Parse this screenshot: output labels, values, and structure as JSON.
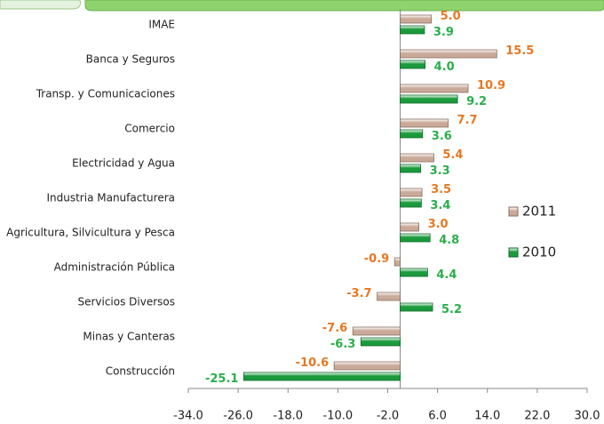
{
  "chart_data": {
    "type": "hbar",
    "categories": [
      "IMAE",
      "Banca y Seguros",
      "Transp. y Comunicaciones",
      "Comercio",
      "Electricidad y Agua",
      "Industria Manufacturera",
      "Agricultura, Silvicultura y Pesca",
      "Administración Pública",
      "Servicios Diversos",
      "Minas y Canteras",
      "Construcción"
    ],
    "series": [
      {
        "name": "2011",
        "color": "#c9a999",
        "label_color": "#e87722",
        "values": [
          5.0,
          15.5,
          10.9,
          7.7,
          5.4,
          3.5,
          3.0,
          -0.9,
          -3.7,
          -7.6,
          -10.6
        ],
        "value_labels": [
          "5.0",
          "15.5",
          "10.9",
          "7.7",
          "5.4",
          "3.5",
          "3.0",
          "-0.9",
          "-3.7",
          "-7.6",
          "-10.6"
        ]
      },
      {
        "name": "2010",
        "color": "#1a9a3c",
        "label_color": "#2aae4a",
        "values": [
          3.9,
          4.0,
          9.2,
          3.6,
          3.3,
          3.4,
          4.8,
          4.4,
          5.2,
          -6.3,
          -25.1
        ],
        "value_labels": [
          "3.9",
          "4.0",
          "9.2",
          "3.6",
          "3.3",
          "3.4",
          "4.8",
          "4.4",
          "5.2",
          "-6.3",
          "-25.1"
        ]
      }
    ],
    "xlim": [
      -34,
      30
    ],
    "xticks": [
      {
        "value": -34,
        "label": "-34.0"
      },
      {
        "value": -26,
        "label": "-26.0"
      },
      {
        "value": -18,
        "label": "-18.0"
      },
      {
        "value": -10,
        "label": "-10.0"
      },
      {
        "value": -2,
        "label": "-2.0"
      },
      {
        "value": 6,
        "label": "6.0"
      },
      {
        "value": 14,
        "label": "14.0"
      },
      {
        "value": 22,
        "label": "22.0"
      },
      {
        "value": 30,
        "label": "30.0"
      }
    ],
    "legend": "right"
  }
}
